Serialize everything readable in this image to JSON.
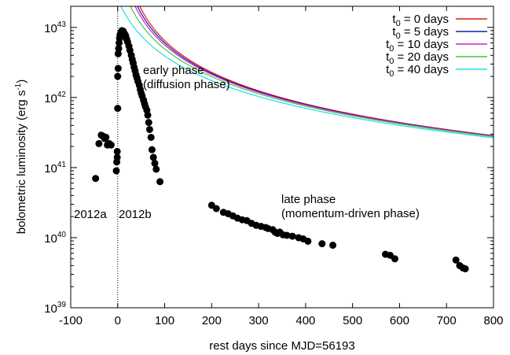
{
  "chart_data": {
    "type": "scatter",
    "xlabel": "rest days since MJD=56193",
    "ylabel": "bolometric luminosity (erg s",
    "ylabel_unit_sup": "-1",
    "ylabel_close": ")",
    "xlim": [
      -100,
      800
    ],
    "ylim": [
      1e+39,
      2e+43
    ],
    "yscale": "log",
    "x_ticks": [
      -100,
      0,
      100,
      200,
      300,
      400,
      500,
      600,
      700,
      800
    ],
    "y_ticks": [
      {
        "base": "10",
        "exp": "39",
        "value": 1e+39
      },
      {
        "base": "10",
        "exp": "40",
        "value": 1e+40
      },
      {
        "base": "10",
        "exp": "41",
        "value": 1e+41
      },
      {
        "base": "10",
        "exp": "42",
        "value": 1e+42
      },
      {
        "base": "10",
        "exp": "43",
        "value": 1e+43
      }
    ],
    "grid": false,
    "legend_position": "top-right",
    "vertical_marker_x": 0,
    "annotations": {
      "early": [
        "early phase",
        "(diffusion phase)"
      ],
      "late": [
        "late phase",
        "(momentum-driven phase)"
      ],
      "left_event": "2012a",
      "right_event": "2012b"
    },
    "model_amplitude": 1e+44,
    "model_timescale_days": 16.13,
    "model_exponent": -1.5,
    "series": [
      {
        "name": "t",
        "name_sub": "0",
        "name_rest": " = 0 days",
        "t0": 0,
        "color": "#e41a1c"
      },
      {
        "name": "t",
        "name_sub": "0",
        "name_rest": " = 5 days",
        "t0": 5,
        "color": "#1a1aa8"
      },
      {
        "name": "t",
        "name_sub": "0",
        "name_rest": " = 10 days",
        "t0": 10,
        "color": "#cc22cc"
      },
      {
        "name": "t",
        "name_sub": "0",
        "name_rest": " = 20 days",
        "t0": 20,
        "color": "#44c844"
      },
      {
        "name": "t",
        "name_sub": "0",
        "name_rest": " = 40 days",
        "t0": 40,
        "color": "#22dddd"
      }
    ],
    "points": [
      [
        -47,
        7e+40
      ],
      [
        -40,
        2.2e+41
      ],
      [
        -35,
        2.9e+41
      ],
      [
        -31,
        2.8e+41
      ],
      [
        -28,
        2.6e+41
      ],
      [
        -25,
        2.7e+41
      ],
      [
        -22,
        2.1e+41
      ],
      [
        -18,
        2.2e+41
      ],
      [
        -14,
        2.1e+41
      ],
      [
        -3,
        9e+40
      ],
      [
        -2,
        1.2e+41
      ],
      [
        -1,
        1.4e+41
      ],
      [
        -1,
        1.7e+41
      ],
      [
        0,
        7e+41
      ],
      [
        0,
        2e+42
      ],
      [
        1,
        2.6e+42
      ],
      [
        1,
        4.2e+42
      ],
      [
        2,
        5e+42
      ],
      [
        3,
        6e+42
      ],
      [
        4,
        7e+42
      ],
      [
        5,
        7.8e+42
      ],
      [
        6,
        8e+42
      ],
      [
        7,
        8.5e+42
      ],
      [
        8,
        8.8e+42
      ],
      [
        9,
        9e+42
      ],
      [
        10,
        8.9e+42
      ],
      [
        12,
        8.8e+42
      ],
      [
        13,
        8.4e+42
      ],
      [
        15,
        8e+42
      ],
      [
        17,
        7.6e+42
      ],
      [
        19,
        6.8e+42
      ],
      [
        21,
        6.2e+42
      ],
      [
        24,
        5.4e+42
      ],
      [
        26,
        4.7e+42
      ],
      [
        29,
        4e+42
      ],
      [
        31,
        3.5e+42
      ],
      [
        33,
        3.1e+42
      ],
      [
        35,
        2.7e+42
      ],
      [
        37,
        2.4e+42
      ],
      [
        39,
        2.1e+42
      ],
      [
        41,
        1.9e+42
      ],
      [
        43,
        1.7e+42
      ],
      [
        46,
        1.5e+42
      ],
      [
        48,
        1.3e+42
      ],
      [
        50,
        1.15e+42
      ],
      [
        52,
        1.05e+42
      ],
      [
        55,
        9.2e+41
      ],
      [
        57,
        8.2e+41
      ],
      [
        59,
        7.4e+41
      ],
      [
        62,
        6.6e+41
      ],
      [
        64,
        5.6e+41
      ],
      [
        66,
        4.4e+41
      ],
      [
        68,
        3.5e+41
      ],
      [
        71,
        2.7e+41
      ],
      [
        73,
        1.8e+41
      ],
      [
        76,
        1.4e+41
      ],
      [
        79,
        1.15e+41
      ],
      [
        82,
        9.5e+40
      ],
      [
        90,
        6.3e+40
      ],
      [
        200,
        2.9e+40
      ],
      [
        210,
        2.6e+40
      ],
      [
        225,
        2.3e+40
      ],
      [
        235,
        2.2e+40
      ],
      [
        245,
        2.05e+40
      ],
      [
        255,
        1.9e+40
      ],
      [
        265,
        1.8e+40
      ],
      [
        275,
        1.75e+40
      ],
      [
        285,
        1.6e+40
      ],
      [
        295,
        1.5e+40
      ],
      [
        305,
        1.45e+40
      ],
      [
        315,
        1.4e+40
      ],
      [
        320,
        1.35e+40
      ],
      [
        330,
        1.3e+40
      ],
      [
        335,
        1.2e+40
      ],
      [
        340,
        1.15e+40
      ],
      [
        345,
        1.2e+40
      ],
      [
        352,
        1.1e+40
      ],
      [
        360,
        1.08e+40
      ],
      [
        372,
        1.05e+40
      ],
      [
        385,
        1e+40
      ],
      [
        395,
        9.6e+39
      ],
      [
        405,
        8.9e+39
      ],
      [
        435,
        8.2e+39
      ],
      [
        458,
        7.8e+39
      ],
      [
        570,
        5.8e+39
      ],
      [
        580,
        5.6e+39
      ],
      [
        590,
        5e+39
      ],
      [
        720,
        4.8e+39
      ],
      [
        728,
        4e+39
      ],
      [
        735,
        3.7e+39
      ],
      [
        740,
        3.6e+39
      ]
    ]
  }
}
